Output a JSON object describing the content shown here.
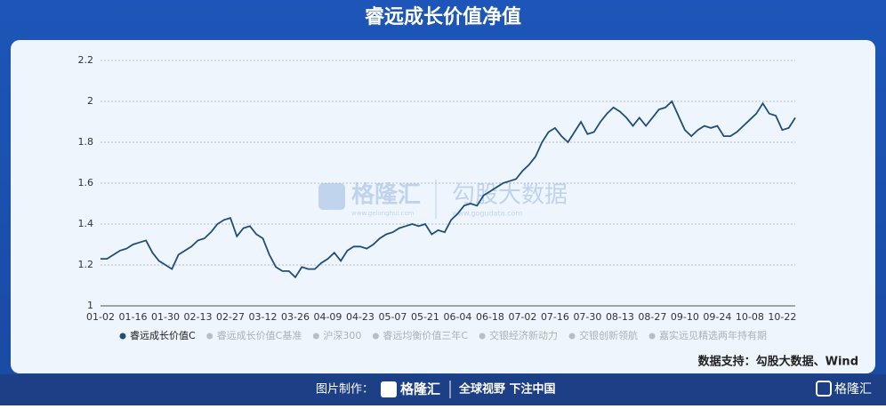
{
  "page": {
    "watermark_logo": "格隆汇",
    "watermark_url": "www.gelonghui.com",
    "watermark_brand": "勾股大数据",
    "watermark_brand_url": "www.gogudata.com",
    "source": "数据支持：勾股大数据、Wind",
    "footer_label": "图片制作：",
    "footer_logo": "格隆汇",
    "footer_slogan": "全球视野 下注中国",
    "corner_logo": "格隆汇"
  },
  "chart_data": {
    "type": "line",
    "title": "睿远成长价值净值",
    "categories": [
      "01-02",
      null,
      null,
      null,
      null,
      "01-16",
      null,
      null,
      null,
      null,
      "01-30",
      null,
      null,
      null,
      null,
      "02-13",
      null,
      null,
      null,
      null,
      "02-27",
      null,
      null,
      null,
      null,
      "03-12",
      null,
      null,
      null,
      null,
      "03-26",
      null,
      null,
      null,
      null,
      "04-09",
      null,
      null,
      null,
      null,
      "04-23",
      null,
      null,
      null,
      null,
      "05-07",
      null,
      null,
      null,
      null,
      "05-21",
      null,
      null,
      null,
      null,
      "06-04",
      null,
      null,
      null,
      null,
      "06-18",
      null,
      null,
      null,
      null,
      "07-02",
      null,
      null,
      null,
      null,
      "07-16",
      null,
      null,
      null,
      null,
      "07-30",
      null,
      null,
      null,
      null,
      "08-13",
      null,
      null,
      null,
      null,
      "08-27",
      null,
      null,
      null,
      null,
      "09-10",
      null,
      null,
      null,
      null,
      "09-24",
      null,
      null,
      null,
      null,
      "10-08",
      null,
      null,
      null,
      null,
      "10-22",
      null,
      null
    ],
    "series": [
      {
        "name": "睿远成长价值C",
        "color": "#1f4e79",
        "values": [
          1.23,
          1.23,
          1.25,
          1.27,
          1.28,
          1.3,
          1.31,
          1.32,
          1.26,
          1.22,
          1.2,
          1.18,
          1.25,
          1.27,
          1.29,
          1.32,
          1.33,
          1.36,
          1.4,
          1.42,
          1.43,
          1.34,
          1.38,
          1.39,
          1.35,
          1.33,
          1.25,
          1.19,
          1.17,
          1.17,
          1.14,
          1.19,
          1.18,
          1.18,
          1.21,
          1.23,
          1.26,
          1.22,
          1.27,
          1.29,
          1.29,
          1.28,
          1.3,
          1.33,
          1.35,
          1.36,
          1.38,
          1.39,
          1.4,
          1.39,
          1.4,
          1.35,
          1.37,
          1.36,
          1.42,
          1.45,
          1.49,
          1.5,
          1.49,
          1.54,
          1.56,
          1.58,
          1.6,
          1.61,
          1.62,
          1.66,
          1.69,
          1.73,
          1.8,
          1.85,
          1.87,
          1.83,
          1.8,
          1.85,
          1.9,
          1.84,
          1.85,
          1.9,
          1.94,
          1.97,
          1.95,
          1.92,
          1.88,
          1.92,
          1.88,
          1.92,
          1.96,
          1.97,
          2.0,
          1.93,
          1.86,
          1.83,
          1.86,
          1.88,
          1.87,
          1.88,
          1.83,
          1.83,
          1.85,
          1.88,
          1.91,
          1.94,
          1.99,
          1.94,
          1.93,
          1.86,
          1.87,
          1.92
        ]
      }
    ],
    "legend_entries": [
      {
        "name": "睿远成长价值C",
        "color": "#1f4e79"
      },
      {
        "name": "睿远成长价值C基准",
        "color": "#b8bec6"
      },
      {
        "name": "沪深300",
        "color": "#b8bec6"
      },
      {
        "name": "睿远均衡价值三年C",
        "color": "#b8bec6"
      },
      {
        "name": "交银经济新动力",
        "color": "#b8bec6"
      },
      {
        "name": "交银创新领航",
        "color": "#b8bec6"
      },
      {
        "name": "嘉实远见精选两年持有期",
        "color": "#b8bec6"
      }
    ],
    "ylim": [
      1,
      2.2
    ],
    "yticks": [
      1,
      1.2,
      1.4,
      1.6,
      1.8,
      2,
      2.2
    ],
    "grid": true
  }
}
